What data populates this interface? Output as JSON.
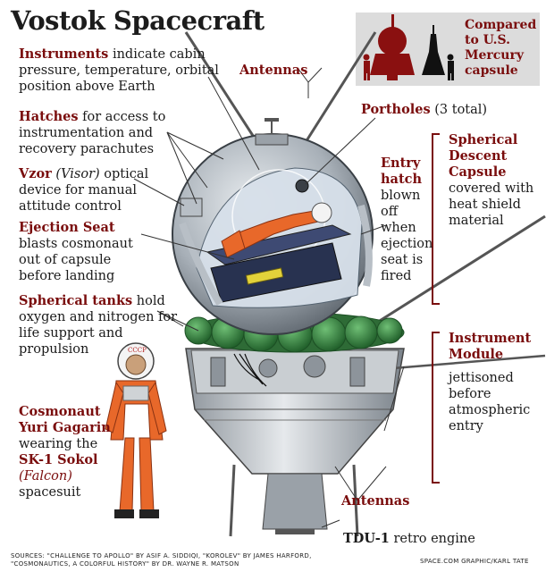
{
  "title": "Vostok Spacecraft",
  "comparison": {
    "text": "Compared to U.S. Mercury capsule"
  },
  "labels": {
    "instruments": {
      "head": "Instruments",
      "body": " indicate cabin pressure, temperature, orbital position above Earth"
    },
    "hatches": {
      "head": "Hatches",
      "body": " for access to instrumentation and recovery parachutes"
    },
    "vzor": {
      "head": "Vzor",
      "alt": "(Visor)",
      "body": " optical device for manual attitude control"
    },
    "ejection": {
      "head": "Ejection Seat",
      "body": " blasts cosmonaut out of capsule before landing"
    },
    "tanks": {
      "head": "Spherical tanks",
      "body": " hold oxygen and nitrogen for life support and propulsion"
    },
    "cosmonaut": {
      "head": "Cosmonaut Yuri Gagarin",
      "mid": "wearing the",
      "suit": "SK-1 Sokol",
      "alt": "(Falcon)",
      "tail": "spacesuit"
    },
    "antennas_top": "Antennas",
    "portholes": {
      "head": "Portholes",
      "body": " (3 total)"
    },
    "entry_hatch": {
      "head": "Entry hatch",
      "body": "blown off when ejection seat is fired"
    },
    "descent": {
      "head": "Spherical Descent Capsule",
      "body": "covered with heat shield material"
    },
    "module": {
      "head": "Instrument Module",
      "body": "jettisoned before atmospheric entry"
    },
    "antennas_bottom": "Antennas",
    "tdu": {
      "head": "TDU-1",
      "body": " retro engine"
    }
  },
  "footer": {
    "sources_line1": "SOURCES: \"CHALLENGE TO APOLLO\" BY ASIF A. SIDDIQI, \"KOROLEV\" BY JAMES HARFORD,",
    "sources_line2": "\"COSMONAUTICS, A COLORFUL HISTORY\" BY DR. WAYNE R. MATSON",
    "credit": "SPACE.COM GRAPHIC/KARL TATE"
  },
  "colors": {
    "accent": "#7a0d0d",
    "tank_green": "#2f7a3a",
    "suit_orange": "#e8682a",
    "hull_gray": "#8a9098"
  }
}
